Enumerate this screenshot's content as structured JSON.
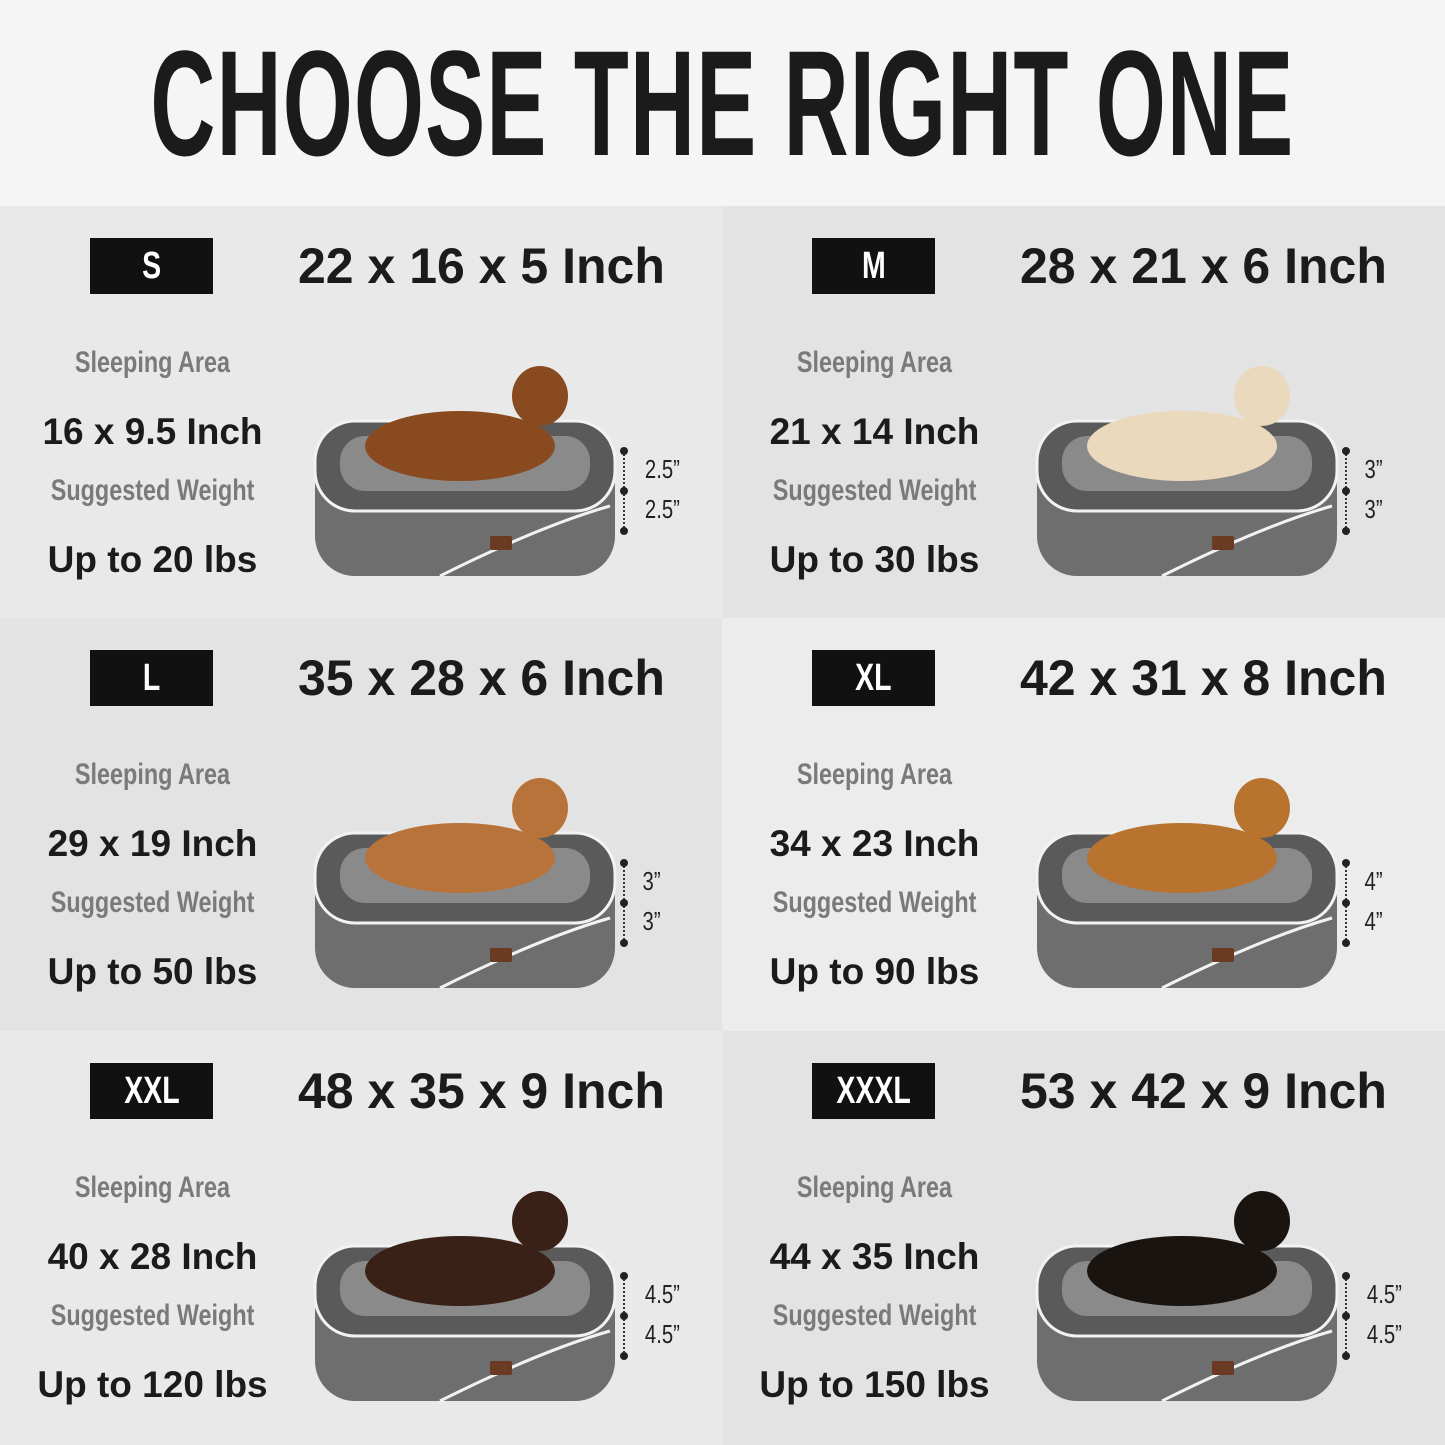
{
  "title": "CHOOSE THE RIGHT ONE",
  "labels": {
    "sleeping_area": "Sleeping Area",
    "suggested_weight": "Suggested Weight"
  },
  "colors": {
    "badge": "#111111",
    "text": "#1b1b1b",
    "label": "#7a7a7a",
    "bed": "#6b6b6b"
  },
  "sizes": [
    {
      "size": "S",
      "dimensions": "22 x 16 x 5 Inch",
      "sleeping_area": "16 x 9.5 Inch",
      "weight": "Up to 20 lbs",
      "heights": [
        "2.5”",
        "2.5”"
      ],
      "dog_color": "#8a4a1f",
      "bg": "#e9e9e9"
    },
    {
      "size": "M",
      "dimensions": "28 x 21 x 6 Inch",
      "sleeping_area": "21 x 14 Inch",
      "weight": "Up to 30 lbs",
      "heights": [
        "3”",
        "3”"
      ],
      "dog_color": "#ead9bd",
      "bg": "#e3e3e3"
    },
    {
      "size": "L",
      "dimensions": "35 x 28 x 6 Inch",
      "sleeping_area": "29 x 19 Inch",
      "weight": "Up to 50 lbs",
      "heights": [
        "3”",
        "3”"
      ],
      "dog_color": "#b8733a",
      "bg": "#e3e3e3"
    },
    {
      "size": "XL",
      "dimensions": "42 x 31 x 8 Inch",
      "sleeping_area": "34 x 23 Inch",
      "weight": "Up to 90 lbs",
      "heights": [
        "4”",
        "4”"
      ],
      "dog_color": "#b8732f",
      "bg": "#ececec"
    },
    {
      "size": "XXL",
      "dimensions": "48 x 35 x 9 Inch",
      "sleeping_area": "40 x 28 Inch",
      "weight": "Up to 120 lbs",
      "heights": [
        "4.5”",
        "4.5”"
      ],
      "dog_color": "#3a2118",
      "bg": "#e9e9e9"
    },
    {
      "size": "XXXL",
      "dimensions": "53 x 42 x 9 Inch",
      "sleeping_area": "44 x 35 Inch",
      "weight": "Up to 150 lbs",
      "heights": [
        "4.5”",
        "4.5”"
      ],
      "dog_color": "#1a1410",
      "bg": "#e3e3e3"
    }
  ]
}
